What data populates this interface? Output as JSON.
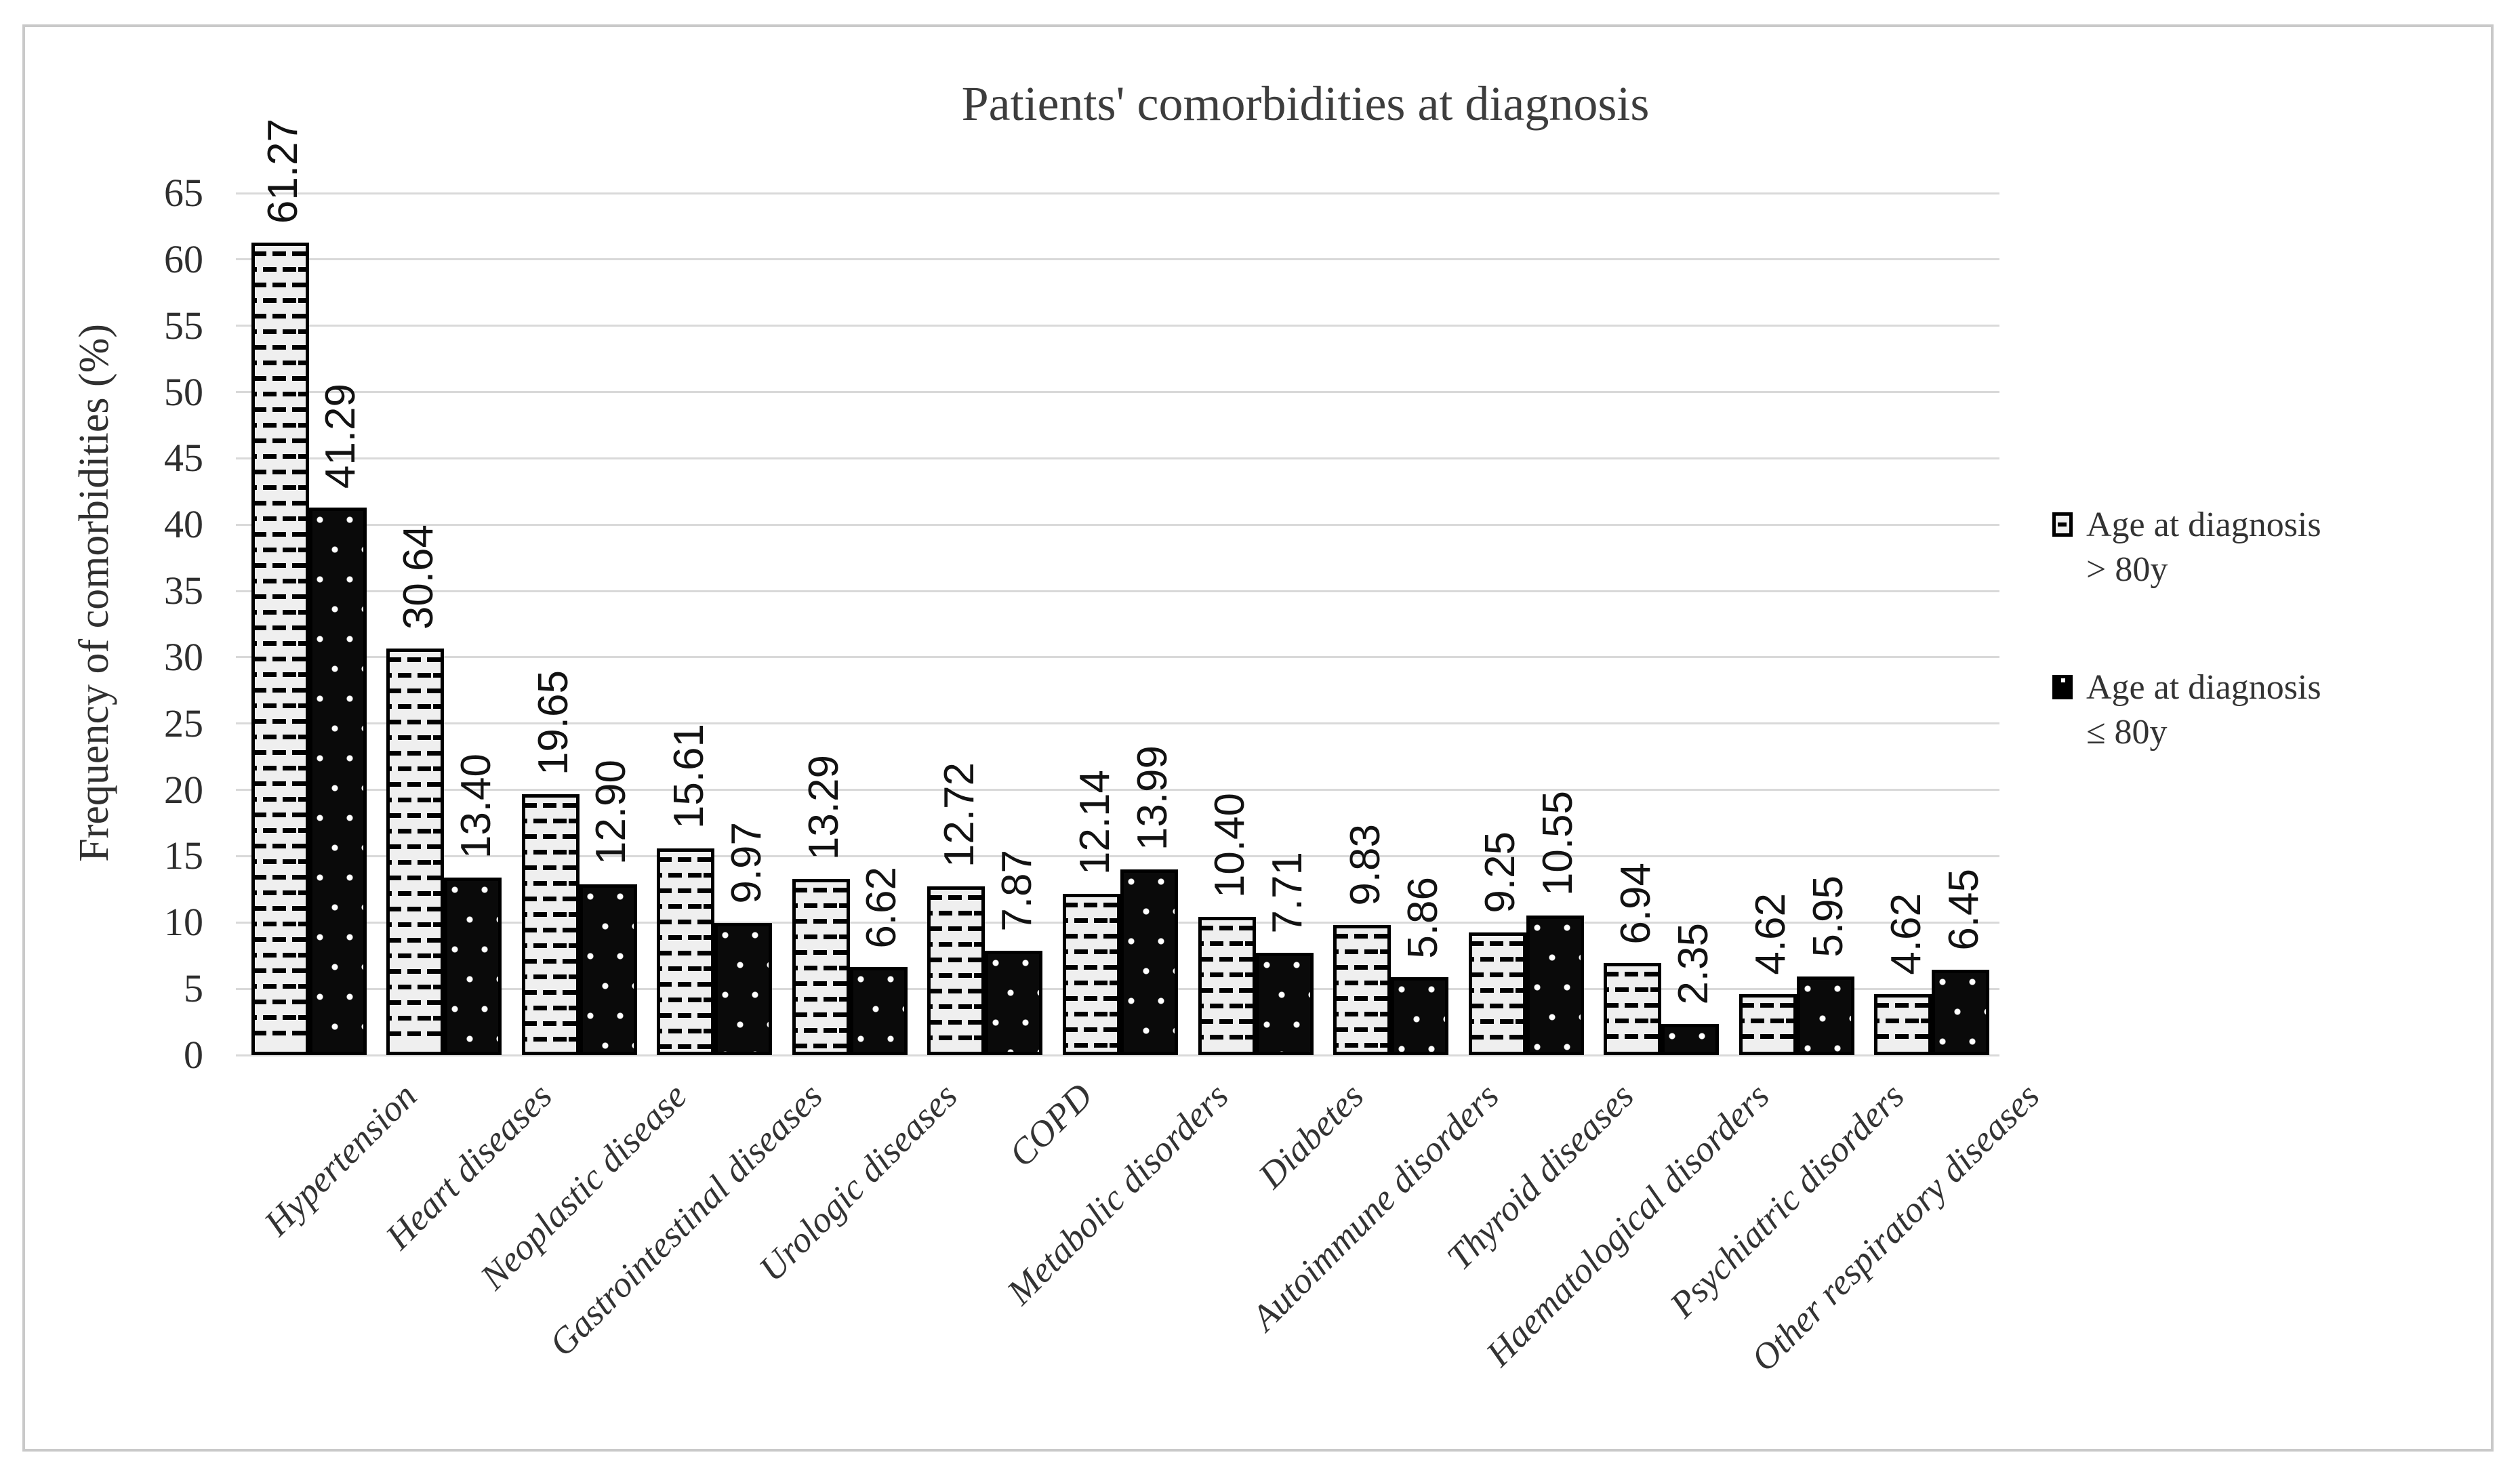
{
  "chart_data": {
    "type": "bar",
    "title": "Patients' comorbidities at diagnosis",
    "xlabel": "",
    "ylabel": "Frequency of comorbidities (%)",
    "ylim": [
      0,
      65
    ],
    "ytick_step": 5,
    "yticks": [
      0,
      5,
      10,
      15,
      20,
      25,
      30,
      35,
      40,
      45,
      50,
      55,
      60,
      65
    ],
    "grid": "horizontal",
    "legend_position": "right",
    "data_labels": true,
    "categories": [
      "Hypertension",
      "Heart diseases",
      "Neoplastic disease",
      "Gastrointestinal diseases",
      "Urologic diseases",
      "COPD",
      "Metabolic disorders",
      "Diabetes",
      "Autoimmune disorders",
      "Thyroid diseases",
      "Haematological disorders",
      "Psychiatric disorders",
      "Other respiratory diseases"
    ],
    "series": [
      {
        "name": "Age at diagnosis > 80y",
        "pattern": "horizontal-dashes",
        "values": [
          61.27,
          30.64,
          19.65,
          15.61,
          13.29,
          12.72,
          12.14,
          10.4,
          9.83,
          9.25,
          6.94,
          4.62,
          4.62
        ]
      },
      {
        "name": "Age at diagnosis ≤ 80y",
        "pattern": "white-dots-on-black",
        "values": [
          41.29,
          13.4,
          12.9,
          9.97,
          6.62,
          7.87,
          13.99,
          7.71,
          5.86,
          10.55,
          2.35,
          5.95,
          6.45
        ]
      }
    ]
  },
  "legend": {
    "items": [
      {
        "lines": [
          "Age at diagnosis",
          "> 80y"
        ],
        "swatch": "dashes"
      },
      {
        "lines": [
          "Age at diagnosis",
          "≤ 80y"
        ],
        "swatch": "dots"
      }
    ]
  },
  "colors": {
    "bar_light_bg": "#efefef",
    "bar_pattern": "#000000",
    "bar_dark_bg": "#0a0a0a",
    "gridline": "#d9d9d9",
    "frame_border": "#c9c9c9",
    "text": "#333333",
    "value_text": "#121212"
  }
}
